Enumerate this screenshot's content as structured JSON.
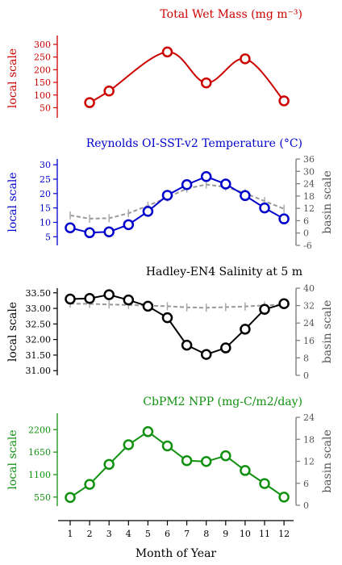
{
  "figure": {
    "xlabel": "Month of Year",
    "months": [
      1,
      2,
      3,
      4,
      5,
      6,
      7,
      8,
      9,
      10,
      11,
      12
    ],
    "left_label": "local scale",
    "right_label": "basin scale"
  },
  "chart_data": [
    {
      "type": "line",
      "title": "Total Wet Mass (mg m⁻³)",
      "color": "#cc0000",
      "ylabel": "local scale",
      "ylim": [
        10,
        335
      ],
      "yticks": [
        50,
        100,
        150,
        200,
        250,
        300
      ],
      "smooth": true,
      "series": [
        {
          "values": [
            null,
            70,
            116,
            null,
            null,
            270,
            null,
            148,
            null,
            243,
            null,
            77
          ]
        }
      ]
    },
    {
      "type": "line",
      "title": "Reynolds OI-SST-v2 Temperature (°C)",
      "color": "#0000cc",
      "ylabel": "local scale",
      "ylim": [
        2,
        32
      ],
      "yticks": [
        5,
        10,
        15,
        20,
        25,
        30
      ],
      "y2label": "basin scale",
      "y2lim": [
        -6,
        36
      ],
      "y2ticks": [
        -6,
        0,
        6,
        12,
        18,
        24,
        30,
        36
      ],
      "series": [
        {
          "axis": "local",
          "values": [
            8.1,
            6.4,
            6.7,
            9.2,
            13.8,
            19.4,
            23.1,
            25.9,
            23.3,
            19.3,
            15.0,
            11.2
          ]
        },
        {
          "axis": "basin",
          "values": [
            8.6,
            7.0,
            7.2,
            9.6,
            13.3,
            17.3,
            21.6,
            23.6,
            22.4,
            19.4,
            15.5,
            11.8
          ]
        }
      ]
    },
    {
      "type": "line",
      "title": "Hadley-EN4 Salinity at 5 m",
      "color": "#000000",
      "ylabel": "local scale",
      "ylim": [
        30.85,
        33.65
      ],
      "yticks": [
        31.0,
        31.5,
        32.0,
        32.5,
        33.0,
        33.5
      ],
      "yticklabels": [
        "31.00",
        "31.50",
        "32.00",
        "32.50",
        "33.00",
        "33.50"
      ],
      "y2label": "basin scale",
      "y2lim": [
        0,
        40
      ],
      "y2ticks": [
        0,
        8,
        16,
        24,
        32,
        40
      ],
      "series": [
        {
          "axis": "local",
          "values": [
            33.3,
            33.32,
            33.44,
            33.27,
            33.07,
            32.7,
            31.82,
            31.52,
            31.73,
            32.33,
            32.97,
            33.15
          ]
        },
        {
          "axis": "basin",
          "values": [
            32.9,
            32.8,
            32.5,
            32.3,
            32.0,
            31.7,
            31.2,
            31.0,
            31.3,
            31.6,
            32.1,
            32.5
          ]
        }
      ]
    },
    {
      "type": "line",
      "title": "CbPM2 NPP (mg-C/m2/day)",
      "color": "#109010",
      "ylabel": "local scale",
      "ylim": [
        330,
        2600
      ],
      "yticks": [
        550,
        1100,
        1650,
        2200
      ],
      "y2label": "basin scale",
      "y2lim": [
        0,
        24
      ],
      "y2ticks": [
        0,
        6,
        12,
        18,
        24
      ],
      "series": [
        {
          "axis": "local",
          "values": [
            540,
            860,
            1350,
            1830,
            2150,
            1800,
            1440,
            1420,
            1560,
            1200,
            880,
            550
          ]
        }
      ]
    }
  ]
}
